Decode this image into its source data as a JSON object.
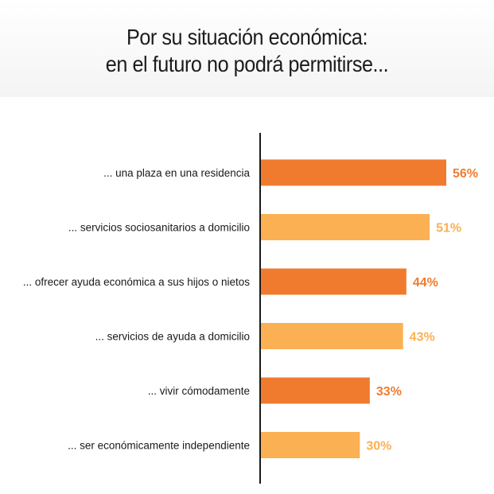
{
  "title": {
    "line1": "Por su situación económica:",
    "line2": "en el futuro no podrá permitirse..."
  },
  "colors": {
    "dark_orange": "#f07b2f",
    "light_orange": "#fbb054",
    "axis": "#1a1a1a"
  },
  "chart_data": {
    "type": "bar",
    "orientation": "horizontal",
    "categories": [
      "... una plaza en una residencia",
      "... servicios sociosanitarios a domicilio",
      "... ofrecer ayuda económica a sus hijos o nietos",
      "... servicios de ayuda a domicilio",
      "... vivir cómodamente",
      "... ser económicamente independiente"
    ],
    "values": [
      56,
      51,
      44,
      43,
      33,
      30
    ],
    "value_labels": [
      "56%",
      "51%",
      "44%",
      "43%",
      "33%",
      "30%"
    ],
    "bar_colors": [
      "#f07b2f",
      "#fbb054",
      "#f07b2f",
      "#fbb054",
      "#f07b2f",
      "#fbb054"
    ],
    "xlim": [
      0,
      56
    ],
    "grid": false,
    "legend": "none"
  }
}
